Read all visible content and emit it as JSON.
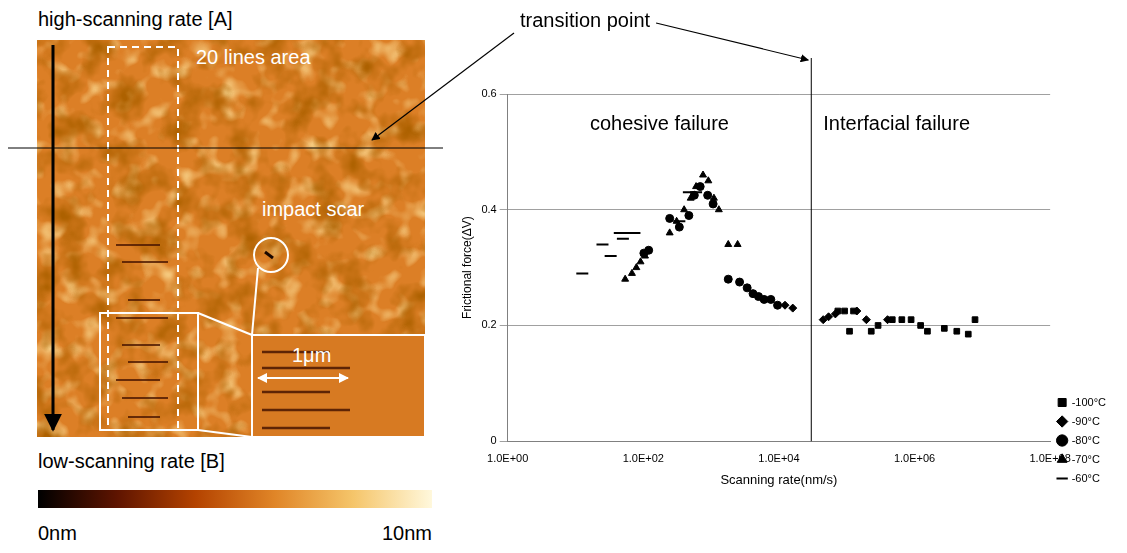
{
  "image_panel": {
    "top_label": "high-scanning rate   [A]",
    "bottom_label": "low-scanning rate   [B]",
    "area_label": "20 lines  area",
    "scar_label": "impact scar",
    "scale_label": "1μm",
    "colorbar": {
      "range": [
        0,
        10
      ],
      "ticks": [
        {
          "value": 0,
          "label": "0nm"
        },
        {
          "value": 10,
          "label": "10nm"
        }
      ],
      "colors": [
        "#000000",
        "#5e1400",
        "#b44300",
        "#e08527",
        "#f5c56a",
        "#fff8dc"
      ]
    }
  },
  "transition_label": "transition point",
  "chart_data": {
    "type": "scatter",
    "x_label": "Scanning rate(nm/s)",
    "y_label": "Frictional force(ΔV)",
    "log": "x",
    "grid": "y",
    "legend": "right",
    "xlim": [
      1,
      100000000
    ],
    "xticks": [
      {
        "value": 1,
        "label": "1.0E+00"
      },
      {
        "value": 100,
        "label": "1.0E+02"
      },
      {
        "value": 10000,
        "label": "1.0E+04"
      },
      {
        "value": 1000000,
        "label": "1.0E+06"
      },
      {
        "value": 100000000,
        "label": "1.0E+08"
      }
    ],
    "ylim": [
      0,
      0.6
    ],
    "yticks": [
      0,
      0.2,
      0.4,
      0.6
    ],
    "transition_x": 30000,
    "regions": [
      "cohesive failure",
      "Interfacial failure"
    ],
    "series": [
      {
        "name": "-100°C",
        "color": "#000000",
        "marker": "square",
        "x": [
          74000,
          93000,
          110000,
          126000,
          230000,
          290000,
          470000,
          650000,
          890000,
          1230000,
          1550000,
          2750000,
          4200000,
          6200000,
          7800000
        ],
        "values": [
          0.225,
          0.225,
          0.19,
          0.225,
          0.19,
          0.2,
          0.21,
          0.21,
          0.21,
          0.2,
          0.19,
          0.195,
          0.19,
          0.185,
          0.21
        ]
      },
      {
        "name": "-90°C",
        "color": "#000000",
        "marker": "diamond",
        "x": [
          12300,
          16000,
          45000,
          54000,
          68000,
          141000,
          195000,
          400000
        ],
        "values": [
          0.235,
          0.23,
          0.21,
          0.215,
          0.22,
          0.225,
          0.21,
          0.21
        ]
      },
      {
        "name": "-80°C",
        "color": "#000000",
        "marker": "circle",
        "x": [
          102,
          120,
          245,
          340,
          470,
          565,
          690,
          890,
          1070,
          1790,
          2630,
          3400,
          4150,
          5000,
          6050,
          7600,
          9550
        ],
        "values": [
          0.325,
          0.33,
          0.385,
          0.37,
          0.39,
          0.425,
          0.44,
          0.425,
          0.41,
          0.28,
          0.275,
          0.265,
          0.255,
          0.25,
          0.245,
          0.245,
          0.235
        ]
      },
      {
        "name": "-70°C",
        "color": "#000000",
        "marker": "triangle",
        "x": [
          54,
          68,
          79,
          91,
          106,
          245,
          310,
          400,
          500,
          600,
          760,
          910,
          1100,
          1300,
          1790,
          2460
        ],
        "values": [
          0.28,
          0.29,
          0.3,
          0.31,
          0.32,
          0.36,
          0.38,
          0.4,
          0.42,
          0.44,
          0.46,
          0.45,
          0.42,
          0.4,
          0.34,
          0.34
        ]
      },
      {
        "name": "-60°C",
        "color": "#000000",
        "marker": "dash",
        "x": [
          12.6,
          25,
          33,
          45,
          50,
          62,
          74,
          340,
          470,
          600
        ],
        "values": [
          0.29,
          0.34,
          0.32,
          0.36,
          0.35,
          0.36,
          0.36,
          0.38,
          0.43,
          0.43
        ]
      }
    ]
  }
}
